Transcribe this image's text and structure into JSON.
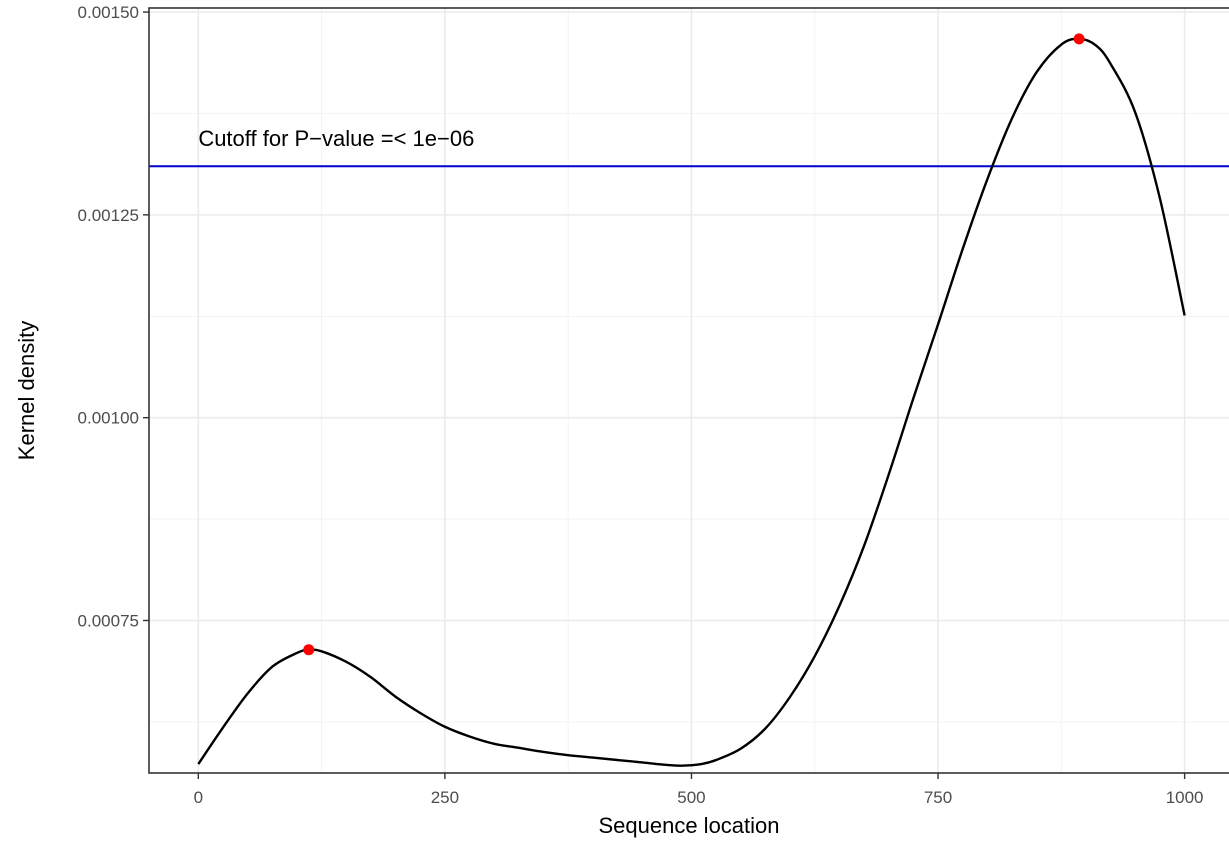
{
  "chart_data": {
    "type": "line",
    "xlabel": "Sequence location",
    "ylabel": "Kernel density",
    "xlim": [
      -50,
      1045
    ],
    "ylim": [
      0.000562,
      0.001505
    ],
    "x_ticks": [
      0,
      250,
      500,
      750,
      1000
    ],
    "x_tick_labels": [
      "0",
      "250",
      "500",
      "750",
      "1000"
    ],
    "y_ticks": [
      0.00075,
      0.001,
      0.00125,
      0.0015
    ],
    "y_tick_labels": [
      "0.00075",
      "0.00100",
      "0.00125",
      "0.00150"
    ],
    "grid": true,
    "series": [
      {
        "x": [
          0,
          25,
          50,
          75,
          100,
          112,
          125,
          150,
          175,
          200,
          225,
          250,
          275,
          300,
          325,
          350,
          375,
          400,
          425,
          450,
          475,
          490,
          510,
          525,
          550,
          575,
          600,
          625,
          650,
          675,
          700,
          725,
          750,
          775,
          800,
          825,
          850,
          875,
          893,
          910,
          925,
          950,
          975,
          1000
        ],
        "y": [
          0.000573,
          0.000618,
          0.00066,
          0.000693,
          0.00071,
          0.000714,
          0.000712,
          0.000699,
          0.00068,
          0.000656,
          0.000636,
          0.000619,
          0.000607,
          0.000598,
          0.000593,
          0.000588,
          0.000584,
          0.000581,
          0.000578,
          0.000575,
          0.000572,
          0.000571,
          0.000573,
          0.000578,
          0.000592,
          0.000617,
          0.000656,
          0.000706,
          0.000768,
          0.000842,
          0.00093,
          0.001024,
          0.001115,
          0.001208,
          0.001294,
          0.001369,
          0.001426,
          0.00146,
          0.001467,
          0.001459,
          0.001436,
          0.001376,
          0.00127,
          0.001126
        ],
        "color": "#000000"
      }
    ],
    "peaks": {
      "x": [
        112,
        893
      ],
      "y": [
        0.000714,
        0.001467
      ],
      "color": "#ff0000"
    },
    "cutoff": {
      "y": 0.00131,
      "color": "#0000cd",
      "label": "Cutoff for P−value =< 1e−06",
      "label_x": 0
    },
    "panel_border": "#333333"
  }
}
